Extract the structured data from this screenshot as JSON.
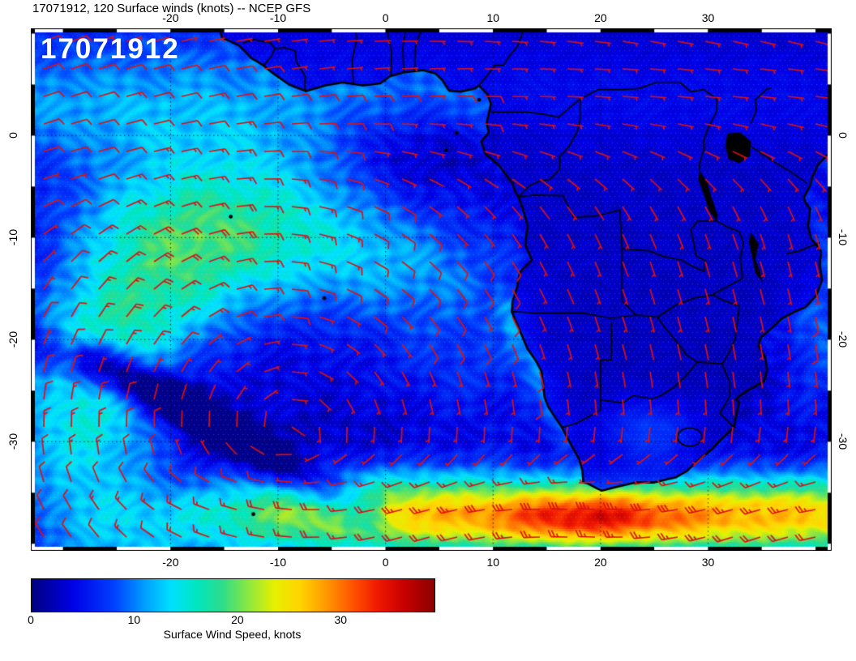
{
  "page_title": "17071912, 120 Surface winds (knots) -- NCEP GFS",
  "map_overlay_label": "17071912",
  "colors": {
    "wind_barb": "#dd1111",
    "coastline": "#000000",
    "graticule": "#000000",
    "overlay_label": "#ffffff",
    "background": "#ffffff"
  },
  "chart_data": {
    "type": "heatmap",
    "title": "17071912, 120 Surface winds (knots) -- NCEP GFS",
    "model": "NCEP GFS",
    "run": "17071912",
    "forecast_hour": "120",
    "field": "Surface winds (knots)",
    "x_axis": {
      "ticks": [
        -20,
        -10,
        0,
        10,
        20,
        30
      ],
      "range": [
        -33,
        41.5
      ]
    },
    "y_axis": {
      "ticks": [
        0,
        -10,
        -20,
        -30
      ],
      "range": [
        -40.7,
        10.5
      ]
    },
    "colorbar": {
      "title": "Surface Wind Speed, knots",
      "ticks": [
        0,
        10,
        20,
        30
      ],
      "range": [
        0,
        39
      ],
      "stops": [
        {
          "v": 0,
          "c": "#00007f"
        },
        {
          "v": 4,
          "c": "#0000e6"
        },
        {
          "v": 8,
          "c": "#0040ff"
        },
        {
          "v": 11,
          "c": "#00a0ff"
        },
        {
          "v": 13.5,
          "c": "#00e0ff"
        },
        {
          "v": 16,
          "c": "#00e6c0"
        },
        {
          "v": 18.5,
          "c": "#2edc8a"
        },
        {
          "v": 21,
          "c": "#8ce840"
        },
        {
          "v": 23.5,
          "c": "#e6f000"
        },
        {
          "v": 26,
          "c": "#ffd400"
        },
        {
          "v": 28.5,
          "c": "#ff9900"
        },
        {
          "v": 31,
          "c": "#ff5500"
        },
        {
          "v": 33.5,
          "c": "#f01800"
        },
        {
          "v": 36,
          "c": "#c80000"
        },
        {
          "v": 39,
          "c": "#8b0000"
        }
      ]
    },
    "wind_barbs": {
      "color": "#dd1111",
      "units": "knots"
    }
  }
}
